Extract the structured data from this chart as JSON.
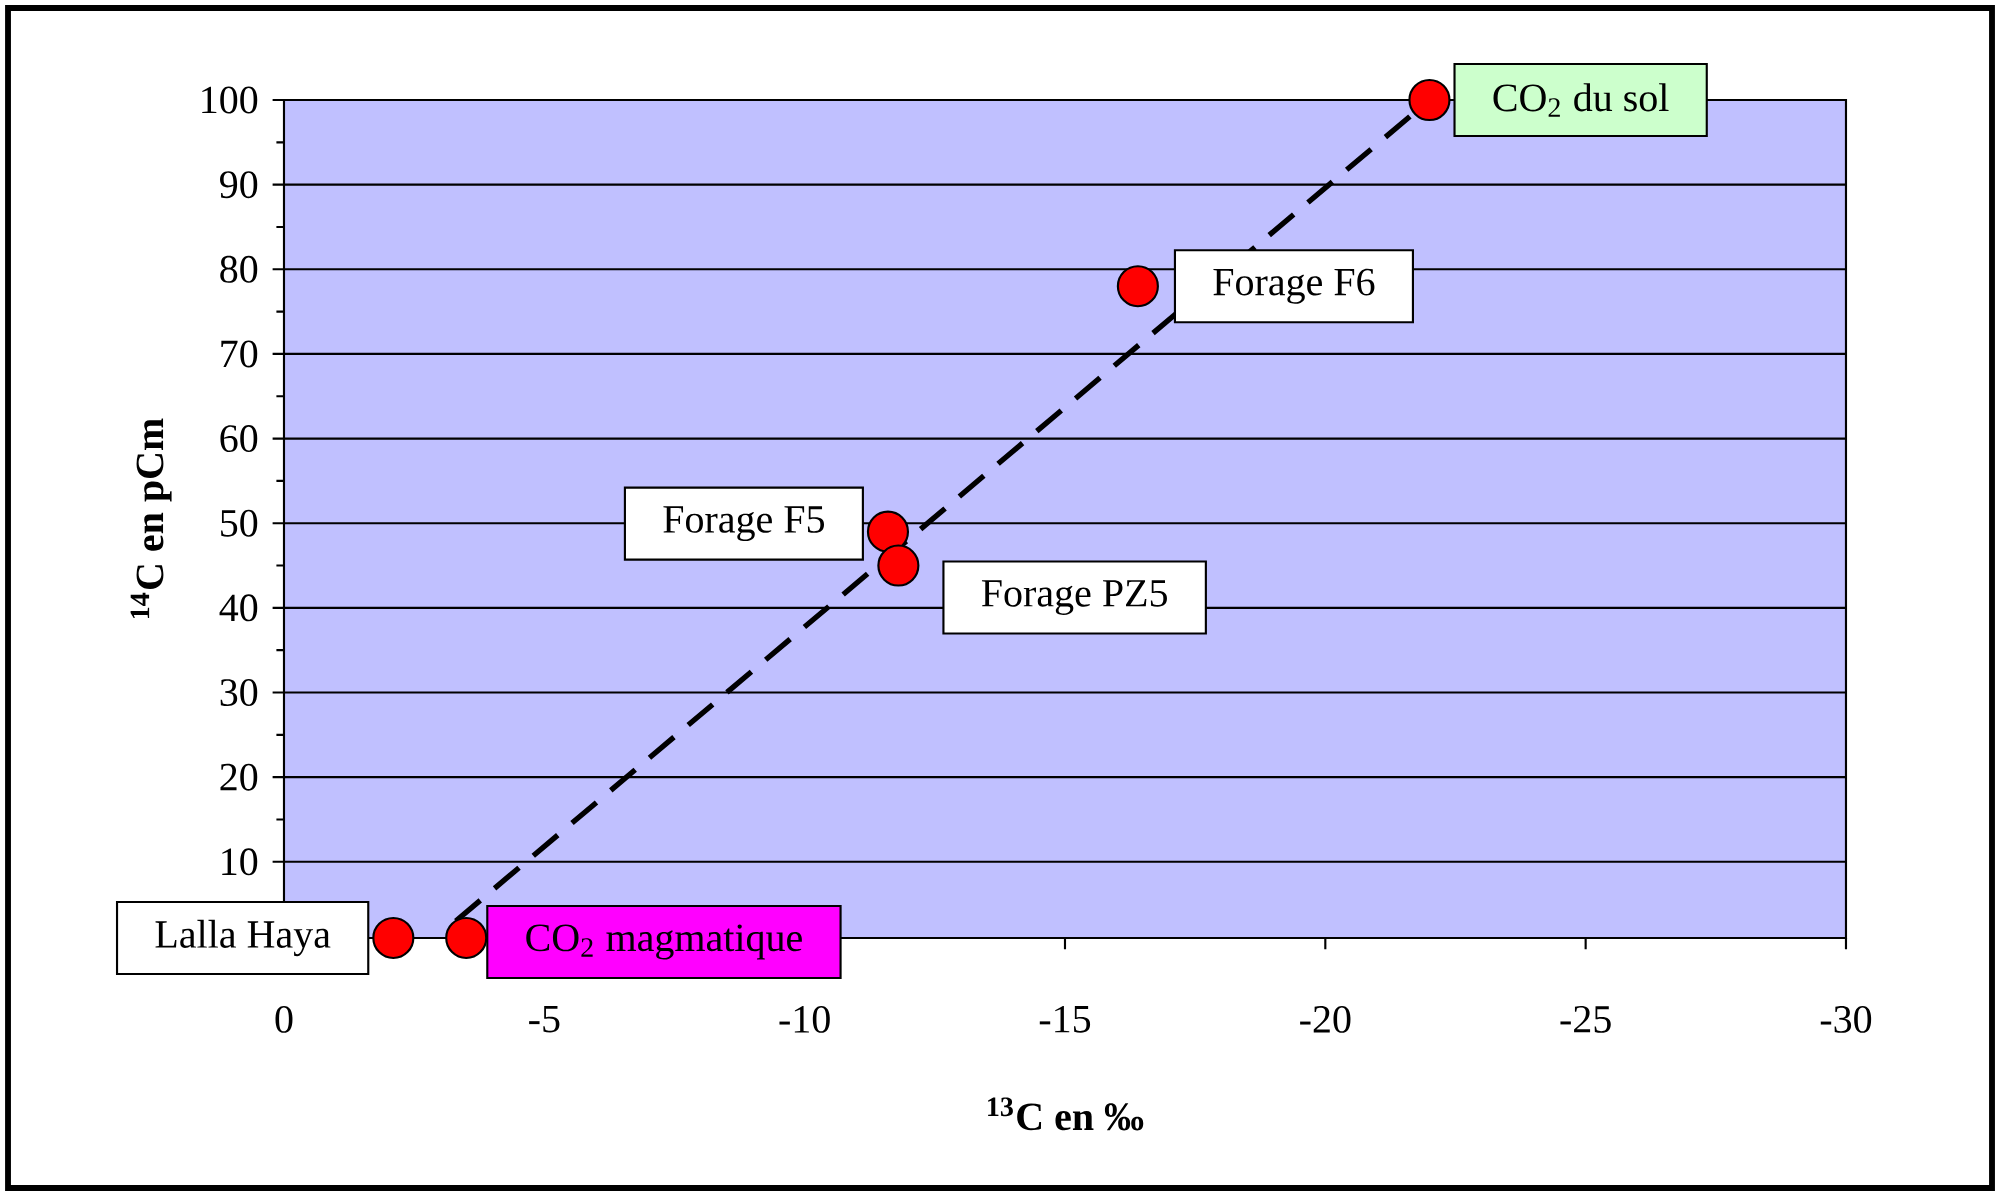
{
  "chart_data": {
    "type": "scatter",
    "xlabel": "$^{13}$C en ‰",
    "ylabel": "$^{14}$C en pCm",
    "x": [
      -2.1,
      -3.5,
      -11.6,
      -11.8,
      -16.4,
      -22
    ],
    "series": [
      {
        "color": "#ff0000",
        "marker": "circle",
        "values": [
          1,
          1,
          49,
          45,
          78,
          100
        ]
      },
      {
        "type": "line",
        "x": [
          -3.3,
          -22
        ],
        "values": [
          3,
          100
        ],
        "color": "#000000",
        "line_style": "dashed",
        "marker": "none"
      }
    ],
    "xlim": [
      0,
      -30
    ],
    "xticks": [
      0,
      -5,
      -10,
      -15,
      -20,
      -25,
      -30
    ],
    "ylim": [
      1,
      100
    ],
    "yticks": [
      10,
      20,
      30,
      40,
      50,
      60,
      70,
      80,
      90,
      100
    ],
    "grid": "y",
    "annotations": [
      {
        "text": "Lalla Haya",
        "x": -2.1,
        "y": 1
      },
      {
        "text": "CO$_{2}$ magmatique",
        "x": -3.5,
        "y": 1
      },
      {
        "text": "Forage F5",
        "x": -11.6,
        "y": 49
      },
      {
        "text": "Forage PZ5",
        "x": -11.8,
        "y": 45
      },
      {
        "text": "Forage F6",
        "x": -16.4,
        "y": 78
      },
      {
        "text": "CO$_{2}$ du sol",
        "x": -22,
        "y": 100
      }
    ]
  }
}
